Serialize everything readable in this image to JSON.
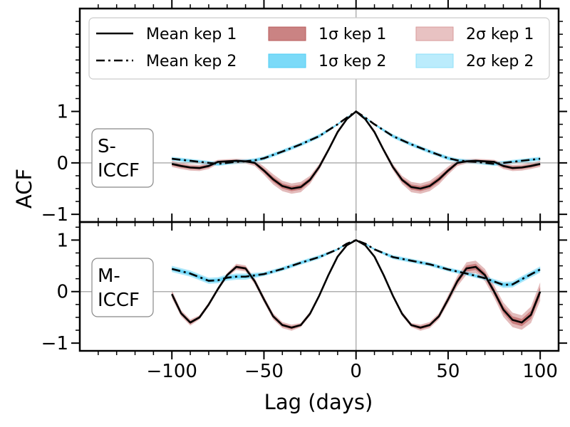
{
  "chart_data": {
    "type": "line",
    "xlabel": "Lag (days)",
    "ylabel": "ACF",
    "xlim": [
      -150,
      110
    ],
    "x_ticks": [
      -100,
      -50,
      0,
      50,
      100
    ],
    "x_tick_labels": [
      "−100",
      "−50",
      "0",
      "50",
      "100"
    ],
    "legend": {
      "placement": "top",
      "entries": [
        {
          "label": "Mean kep 1",
          "kind": "line",
          "dash": "solid",
          "color": "#000000"
        },
        {
          "label": "Mean kep 2",
          "kind": "line",
          "dash": "dashdot",
          "color": "#000000"
        },
        {
          "label": "1σ kep 1",
          "kind": "patch",
          "color": "#b85a5a",
          "opacity": 0.75
        },
        {
          "label": "1σ kep 2",
          "kind": "patch",
          "color": "#4fcdf5",
          "opacity": 0.75
        },
        {
          "label": "2σ kep 1",
          "kind": "patch",
          "color": "#d89a9a",
          "opacity": 0.6
        },
        {
          "label": "2σ kep 2",
          "kind": "patch",
          "color": "#8ee0fa",
          "opacity": 0.6
        }
      ]
    },
    "panels": [
      {
        "name": "S-ICCF",
        "label_lines": [
          "S-",
          "ICCF"
        ],
        "ylim": [
          -1.15,
          3.0
        ],
        "y_ticks": [
          -1,
          0,
          1
        ],
        "y_tick_labels": [
          "−1",
          "0",
          "1"
        ],
        "series": [
          {
            "name": "Mean kep 1",
            "dash": "solid",
            "band_color": "#c06868",
            "x": [
              -100,
              -95,
              -90,
              -85,
              -80,
              -75,
              -70,
              -65,
              -60,
              -55,
              -50,
              -45,
              -40,
              -35,
              -30,
              -25,
              -20,
              -15,
              -10,
              -5,
              0,
              5,
              10,
              15,
              20,
              25,
              30,
              35,
              40,
              45,
              50,
              55,
              60,
              65,
              70,
              75,
              80,
              85,
              90,
              95,
              100
            ],
            "y": [
              -0.02,
              -0.06,
              -0.09,
              -0.1,
              -0.06,
              0.02,
              0.03,
              0.04,
              0.03,
              0.0,
              -0.15,
              -0.32,
              -0.45,
              -0.5,
              -0.47,
              -0.33,
              -0.08,
              0.25,
              0.6,
              0.85,
              1.0,
              0.85,
              0.6,
              0.25,
              -0.08,
              -0.33,
              -0.47,
              -0.5,
              -0.45,
              -0.32,
              -0.15,
              0.0,
              0.03,
              0.04,
              0.03,
              0.02,
              -0.06,
              -0.1,
              -0.09,
              -0.06,
              -0.02
            ],
            "band": [
              0.03,
              0.03,
              0.03,
              0.03,
              0.03,
              0.02,
              0.02,
              0.02,
              0.02,
              0.03,
              0.04,
              0.05,
              0.05,
              0.05,
              0.05,
              0.04,
              0.03,
              0.02,
              0.02,
              0.01,
              0.0,
              0.01,
              0.02,
              0.02,
              0.03,
              0.04,
              0.05,
              0.05,
              0.05,
              0.05,
              0.04,
              0.03,
              0.02,
              0.02,
              0.02,
              0.02,
              0.03,
              0.03,
              0.03,
              0.03,
              0.03
            ]
          },
          {
            "name": "Mean kep 2",
            "dash": "dashdot",
            "band_color": "#4fcdf5",
            "x": [
              -100,
              -90,
              -80,
              -75,
              -70,
              -65,
              -60,
              -55,
              -50,
              -40,
              -30,
              -20,
              -10,
              -5,
              0,
              5,
              10,
              20,
              30,
              40,
              50,
              55,
              60,
              65,
              70,
              75,
              80,
              90,
              100
            ],
            "y": [
              0.08,
              0.04,
              0.0,
              -0.02,
              0.0,
              0.02,
              0.03,
              0.05,
              0.09,
              0.22,
              0.36,
              0.52,
              0.75,
              0.88,
              1.0,
              0.88,
              0.75,
              0.52,
              0.36,
              0.22,
              0.09,
              0.05,
              0.03,
              0.02,
              0.0,
              -0.02,
              0.0,
              0.04,
              0.08
            ],
            "band": [
              0.02,
              0.02,
              0.02,
              0.02,
              0.02,
              0.02,
              0.02,
              0.02,
              0.02,
              0.02,
              0.02,
              0.02,
              0.01,
              0.01,
              0.0,
              0.01,
              0.01,
              0.02,
              0.02,
              0.02,
              0.02,
              0.02,
              0.02,
              0.02,
              0.02,
              0.02,
              0.02,
              0.02,
              0.02
            ]
          }
        ]
      },
      {
        "name": "M-ICCF",
        "label_lines": [
          "M-",
          "ICCF"
        ],
        "ylim": [
          -1.15,
          1.35
        ],
        "y_ticks": [
          -1,
          0,
          1
        ],
        "y_tick_labels": [
          "−1",
          "0",
          "1"
        ],
        "series": [
          {
            "name": "Mean kep 1",
            "dash": "solid",
            "band_color": "#c06868",
            "x": [
              -100,
              -95,
              -90,
              -85,
              -80,
              -75,
              -70,
              -65,
              -60,
              -55,
              -50,
              -45,
              -40,
              -35,
              -30,
              -25,
              -20,
              -15,
              -10,
              -5,
              0,
              5,
              10,
              15,
              20,
              25,
              30,
              35,
              40,
              45,
              50,
              55,
              60,
              65,
              70,
              75,
              80,
              85,
              90,
              95,
              100
            ],
            "y": [
              -0.05,
              -0.42,
              -0.6,
              -0.5,
              -0.25,
              0.05,
              0.32,
              0.48,
              0.45,
              0.2,
              -0.15,
              -0.48,
              -0.65,
              -0.7,
              -0.65,
              -0.43,
              -0.08,
              0.32,
              0.68,
              0.9,
              1.0,
              0.9,
              0.68,
              0.32,
              -0.08,
              -0.43,
              -0.65,
              -0.7,
              -0.65,
              -0.48,
              -0.15,
              0.2,
              0.45,
              0.48,
              0.32,
              0.0,
              -0.35,
              -0.55,
              -0.6,
              -0.45,
              0.0
            ],
            "band": [
              0.04,
              0.03,
              0.03,
              0.02,
              0.02,
              0.02,
              0.02,
              0.03,
              0.03,
              0.03,
              0.03,
              0.03,
              0.03,
              0.03,
              0.02,
              0.02,
              0.02,
              0.01,
              0.01,
              0.01,
              0.0,
              0.01,
              0.01,
              0.01,
              0.02,
              0.02,
              0.02,
              0.03,
              0.03,
              0.03,
              0.04,
              0.05,
              0.06,
              0.06,
              0.06,
              0.06,
              0.07,
              0.07,
              0.07,
              0.08,
              0.09
            ]
          },
          {
            "name": "Mean kep 2",
            "dash": "dashdot",
            "band_color": "#4fcdf5",
            "x": [
              -100,
              -90,
              -80,
              -75,
              -70,
              -65,
              -60,
              -50,
              -40,
              -30,
              -20,
              -10,
              -5,
              0,
              5,
              10,
              20,
              30,
              40,
              50,
              60,
              70,
              80,
              85,
              90,
              100
            ],
            "y": [
              0.44,
              0.35,
              0.21,
              0.22,
              0.27,
              0.29,
              0.29,
              0.34,
              0.44,
              0.56,
              0.67,
              0.82,
              0.93,
              1.0,
              0.93,
              0.82,
              0.67,
              0.6,
              0.53,
              0.43,
              0.35,
              0.26,
              0.13,
              0.14,
              0.24,
              0.43
            ],
            "band": [
              0.03,
              0.03,
              0.03,
              0.03,
              0.03,
              0.03,
              0.03,
              0.02,
              0.02,
              0.02,
              0.02,
              0.01,
              0.01,
              0.0,
              0.01,
              0.01,
              0.02,
              0.02,
              0.02,
              0.02,
              0.02,
              0.02,
              0.03,
              0.03,
              0.03,
              0.03
            ]
          }
        ]
      }
    ]
  }
}
